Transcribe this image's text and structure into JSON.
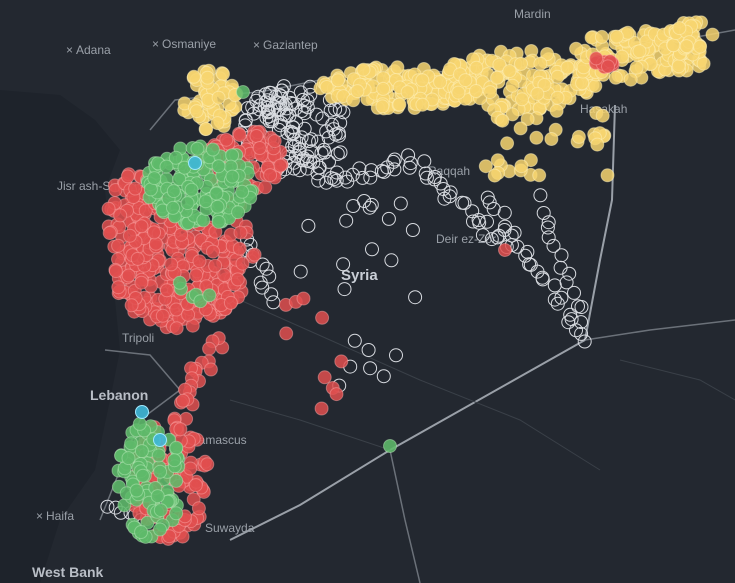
{
  "map": {
    "country": "Syria",
    "regions": [
      "Lebanon",
      "West Bank"
    ],
    "cities": [
      "Mardin",
      "Adana",
      "Osmaniye",
      "Gaziantep",
      "Jisr ash-Shughur",
      "Raqqah",
      "Hasakah",
      "Deir ez-Zor",
      "Tripoli",
      "Damascus",
      "Haifa",
      "Suwayda"
    ]
  }
}
